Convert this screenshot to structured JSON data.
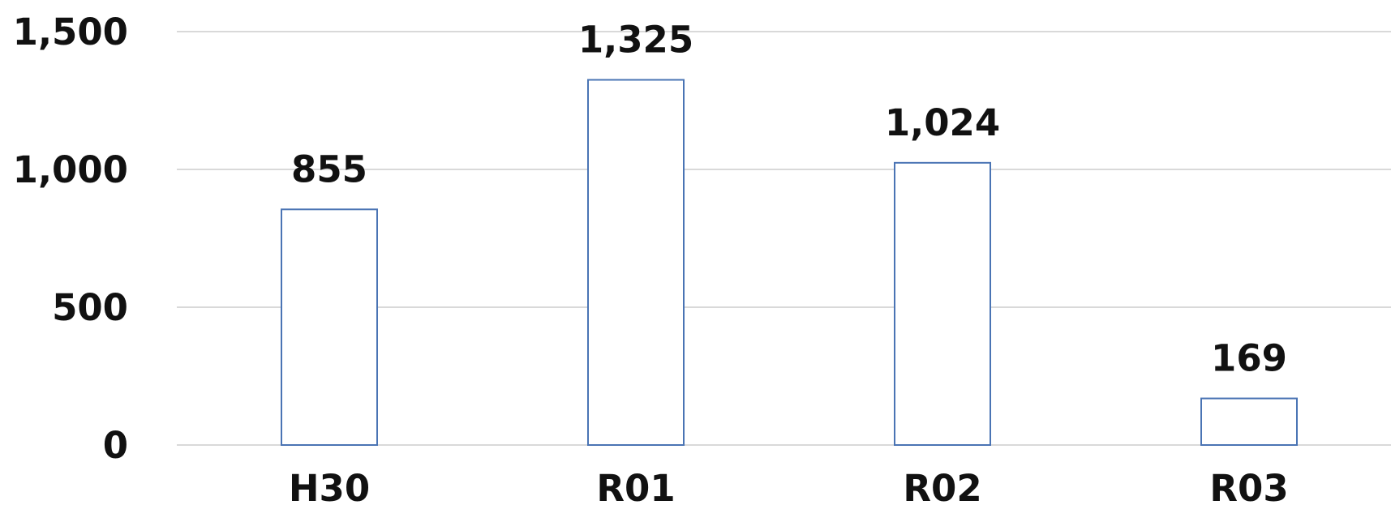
{
  "chart_data": {
    "type": "bar",
    "categories": [
      "H30",
      "R01",
      "R02",
      "R03"
    ],
    "values": [
      855,
      1325,
      1024,
      169
    ],
    "data_labels": [
      "855",
      "1,325",
      "1,024",
      "169"
    ],
    "title": "",
    "xlabel": "",
    "ylabel": "",
    "ylim": [
      0,
      1500
    ],
    "yticks": [
      0,
      500,
      1000,
      1500
    ],
    "ytick_labels": [
      "0",
      "500",
      "1,000",
      "1,500"
    ],
    "grid": true,
    "legend": "none",
    "colors": {
      "bar_outline": "#4a74b4",
      "bar_fill": "#ffffff",
      "grid": "#d9d9d9",
      "text": "#111111"
    }
  }
}
